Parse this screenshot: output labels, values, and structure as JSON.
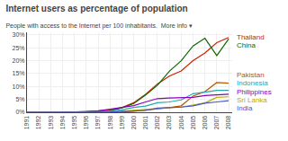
{
  "chart_data": {
    "type": "line",
    "title": "Internet users as percentage of population",
    "subtitle": "People with access to the Internet per 100 inhabitants.  More info ▾",
    "x": [
      1991,
      1992,
      1993,
      1994,
      1995,
      1996,
      1997,
      1998,
      1999,
      2000,
      2001,
      2002,
      2003,
      2004,
      2005,
      2006,
      2007,
      2008
    ],
    "series": [
      {
        "name": "Thailand",
        "color": "#cc2200",
        "values": [
          0.0,
          0.0,
          0.0,
          0.0,
          0.1,
          0.2,
          0.5,
          0.9,
          1.8,
          3.7,
          7.0,
          11.0,
          14.0,
          16.0,
          20.0,
          23.0,
          27.0,
          29.0
        ]
      },
      {
        "name": "China",
        "color": "#116600",
        "values": [
          0.0,
          0.0,
          0.0,
          0.0,
          0.0,
          0.1,
          0.2,
          0.6,
          1.7,
          3.4,
          6.7,
          10.5,
          15.9,
          20.0,
          25.7,
          28.7,
          22.0,
          28.4
        ]
      },
      {
        "name": "Pakistan",
        "color": "#bb5500",
        "values": [
          0.0,
          0.0,
          0.0,
          0.0,
          0.0,
          0.0,
          0.1,
          0.1,
          0.2,
          0.4,
          0.8,
          1.2,
          1.8,
          2.5,
          6.3,
          8.0,
          11.5,
          11.3
        ]
      },
      {
        "name": "Indonesia",
        "color": "#22aaaa",
        "values": [
          0.0,
          0.0,
          0.0,
          0.0,
          0.0,
          0.0,
          0.2,
          0.5,
          0.9,
          1.9,
          2.4,
          3.7,
          4.0,
          4.8,
          7.2,
          7.8,
          8.5,
          8.5
        ]
      },
      {
        "name": "Philippines",
        "color": "#8800bb",
        "values": [
          0.0,
          0.0,
          0.0,
          0.0,
          0.1,
          0.3,
          0.6,
          1.2,
          1.9,
          2.6,
          4.0,
          5.3,
          5.5,
          5.7,
          5.8,
          6.5,
          6.8,
          7.0
        ]
      },
      {
        "name": "Sri Lanka",
        "color": "#bbaa00",
        "values": [
          0.0,
          0.0,
          0.0,
          0.0,
          0.0,
          0.0,
          0.1,
          0.2,
          0.4,
          0.8,
          1.0,
          1.5,
          1.8,
          2.0,
          2.8,
          3.6,
          5.8,
          6.0
        ]
      },
      {
        "name": "India",
        "color": "#4455cc",
        "values": [
          0.0,
          0.0,
          0.0,
          0.0,
          0.0,
          0.0,
          0.1,
          0.1,
          0.3,
          0.5,
          0.7,
          1.6,
          1.7,
          2.0,
          2.5,
          3.5,
          4.0,
          4.5
        ]
      }
    ],
    "xlim": [
      1991,
      2008.3
    ],
    "xticks": [
      1991,
      1992,
      1993,
      1994,
      1995,
      1996,
      1997,
      1998,
      1999,
      2000,
      2001,
      2002,
      2003,
      2004,
      2005,
      2006,
      2007,
      2008
    ],
    "ylim": [
      0,
      31
    ],
    "yticks": [
      {
        "value": 0,
        "label": "0%"
      },
      {
        "value": 5,
        "label": "5%"
      },
      {
        "value": 10,
        "label": "10%"
      },
      {
        "value": 15,
        "label": "15%"
      },
      {
        "value": 20,
        "label": "20%"
      },
      {
        "value": 25,
        "label": "25%"
      },
      {
        "value": 30,
        "label": "30%"
      }
    ],
    "grid": true
  }
}
